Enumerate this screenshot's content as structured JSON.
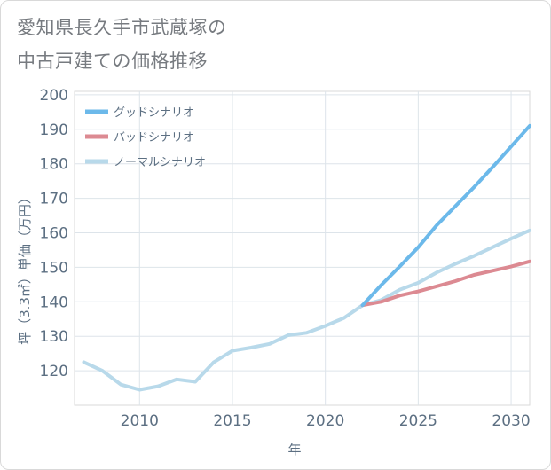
{
  "title_line1": "愛知県長久手市武蔵塚の",
  "title_line2": "中古戸建ての価格推移",
  "chart_data": {
    "type": "line",
    "xlabel": "年",
    "ylabel": "坪（3.3㎡）単価（万円）",
    "xlim": [
      2006.5,
      2031
    ],
    "ylim": [
      110,
      201
    ],
    "xticks": [
      2010,
      2015,
      2020,
      2025,
      2030
    ],
    "yticks": [
      120,
      130,
      140,
      150,
      160,
      170,
      180,
      190,
      200
    ],
    "grid": true,
    "legend_position": "top-left",
    "history": {
      "color": "#b8d9ea",
      "x": [
        2007,
        2008,
        2009,
        2010,
        2011,
        2012,
        2013,
        2014,
        2015,
        2016,
        2017,
        2018,
        2019,
        2020,
        2021,
        2022
      ],
      "y": [
        122.5,
        120,
        116,
        114.5,
        115.5,
        117.5,
        116.8,
        122.5,
        125.8,
        126.7,
        127.8,
        130.3,
        131.0,
        133.0,
        135.3,
        139.0
      ]
    },
    "series": [
      {
        "name": "グッドシナリオ",
        "color": "#6cb9ea",
        "x": [
          2022,
          2023,
          2024,
          2025,
          2026,
          2027,
          2028,
          2029,
          2030,
          2031
        ],
        "y": [
          139.0,
          144.8,
          150.2,
          155.8,
          162.2,
          167.7,
          173.2,
          179.0,
          185.0,
          191.0
        ]
      },
      {
        "name": "バッドシナリオ",
        "color": "#dc8a92",
        "x": [
          2022,
          2023,
          2024,
          2025,
          2026,
          2027,
          2028,
          2029,
          2030,
          2031
        ],
        "y": [
          139.0,
          140.0,
          141.8,
          143.0,
          144.5,
          146.0,
          147.8,
          149.0,
          150.2,
          151.7
        ]
      },
      {
        "name": "ノーマルシナリオ",
        "color": "#b8d9ea",
        "x": [
          2022,
          2023,
          2024,
          2025,
          2026,
          2027,
          2028,
          2029,
          2030,
          2031
        ],
        "y": [
          139.0,
          140.5,
          143.5,
          145.5,
          148.5,
          151.0,
          153.3,
          155.8,
          158.3,
          160.7
        ]
      }
    ]
  }
}
